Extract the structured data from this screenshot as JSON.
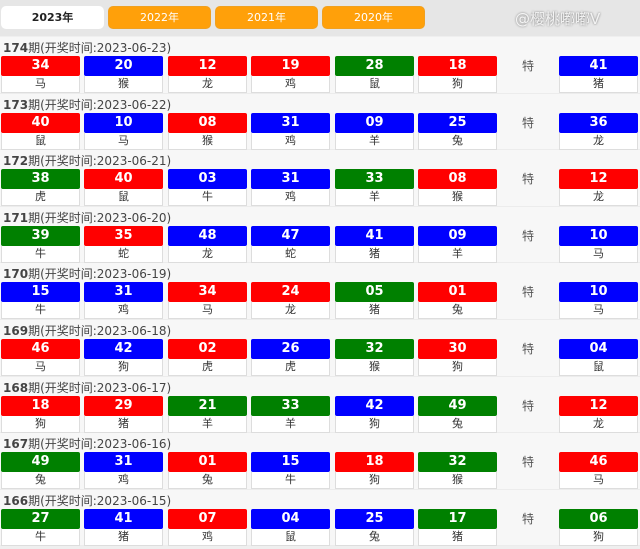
{
  "tabs": [
    {
      "label": "2023年",
      "active": true
    },
    {
      "label": "2022年"
    },
    {
      "label": "2021年"
    },
    {
      "label": "2020年"
    }
  ],
  "colors": {
    "red": "#ff0000",
    "blue": "#0000ff",
    "green": "#008000",
    "tab_orange": "#ffa00a"
  },
  "special_label": "特",
  "time_prefix": "期(开奖时间:",
  "watermark": "@樱桃嘟嘟V",
  "draws": [
    {
      "issue": "174",
      "date": "2023-06-23",
      "balls": [
        [
          "34",
          "red",
          "马"
        ],
        [
          "20",
          "blue",
          "猴"
        ],
        [
          "12",
          "red",
          "龙"
        ],
        [
          "19",
          "red",
          "鸡"
        ],
        [
          "28",
          "green",
          "鼠"
        ],
        [
          "18",
          "red",
          "狗"
        ]
      ],
      "special": [
        "41",
        "blue",
        "猪"
      ]
    },
    {
      "issue": "173",
      "date": "2023-06-22",
      "balls": [
        [
          "40",
          "red",
          "鼠"
        ],
        [
          "10",
          "blue",
          "马"
        ],
        [
          "08",
          "red",
          "猴"
        ],
        [
          "31",
          "blue",
          "鸡"
        ],
        [
          "09",
          "blue",
          "羊"
        ],
        [
          "25",
          "blue",
          "兔"
        ]
      ],
      "special": [
        "36",
        "blue",
        "龙"
      ]
    },
    {
      "issue": "172",
      "date": "2023-06-21",
      "balls": [
        [
          "38",
          "green",
          "虎"
        ],
        [
          "40",
          "red",
          "鼠"
        ],
        [
          "03",
          "blue",
          "牛"
        ],
        [
          "31",
          "blue",
          "鸡"
        ],
        [
          "33",
          "green",
          "羊"
        ],
        [
          "08",
          "red",
          "猴"
        ]
      ],
      "special": [
        "12",
        "red",
        "龙"
      ]
    },
    {
      "issue": "171",
      "date": "2023-06-20",
      "balls": [
        [
          "39",
          "green",
          "牛"
        ],
        [
          "35",
          "red",
          "蛇"
        ],
        [
          "48",
          "blue",
          "龙"
        ],
        [
          "47",
          "blue",
          "蛇"
        ],
        [
          "41",
          "blue",
          "猪"
        ],
        [
          "09",
          "blue",
          "羊"
        ]
      ],
      "special": [
        "10",
        "blue",
        "马"
      ]
    },
    {
      "issue": "170",
      "date": "2023-06-19",
      "balls": [
        [
          "15",
          "blue",
          "牛"
        ],
        [
          "31",
          "blue",
          "鸡"
        ],
        [
          "34",
          "red",
          "马"
        ],
        [
          "24",
          "red",
          "龙"
        ],
        [
          "05",
          "green",
          "猪"
        ],
        [
          "01",
          "red",
          "兔"
        ]
      ],
      "special": [
        "10",
        "blue",
        "马"
      ]
    },
    {
      "issue": "169",
      "date": "2023-06-18",
      "balls": [
        [
          "46",
          "red",
          "马"
        ],
        [
          "42",
          "blue",
          "狗"
        ],
        [
          "02",
          "red",
          "虎"
        ],
        [
          "26",
          "blue",
          "虎"
        ],
        [
          "32",
          "green",
          "猴"
        ],
        [
          "30",
          "red",
          "狗"
        ]
      ],
      "special": [
        "04",
        "blue",
        "鼠"
      ]
    },
    {
      "issue": "168",
      "date": "2023-06-17",
      "balls": [
        [
          "18",
          "red",
          "狗"
        ],
        [
          "29",
          "red",
          "猪"
        ],
        [
          "21",
          "green",
          "羊"
        ],
        [
          "33",
          "green",
          "羊"
        ],
        [
          "42",
          "blue",
          "狗"
        ],
        [
          "49",
          "green",
          "兔"
        ]
      ],
      "special": [
        "12",
        "red",
        "龙"
      ]
    },
    {
      "issue": "167",
      "date": "2023-06-16",
      "balls": [
        [
          "49",
          "green",
          "兔"
        ],
        [
          "31",
          "blue",
          "鸡"
        ],
        [
          "01",
          "red",
          "兔"
        ],
        [
          "15",
          "blue",
          "牛"
        ],
        [
          "18",
          "red",
          "狗"
        ],
        [
          "32",
          "green",
          "猴"
        ]
      ],
      "special": [
        "46",
        "red",
        "马"
      ]
    },
    {
      "issue": "166",
      "date": "2023-06-15",
      "balls": [
        [
          "27",
          "green",
          "牛"
        ],
        [
          "41",
          "blue",
          "猪"
        ],
        [
          "07",
          "red",
          "鸡"
        ],
        [
          "04",
          "blue",
          "鼠"
        ],
        [
          "25",
          "blue",
          "兔"
        ],
        [
          "17",
          "green",
          "猪"
        ]
      ],
      "special": [
        "06",
        "green",
        "狗"
      ]
    }
  ]
}
